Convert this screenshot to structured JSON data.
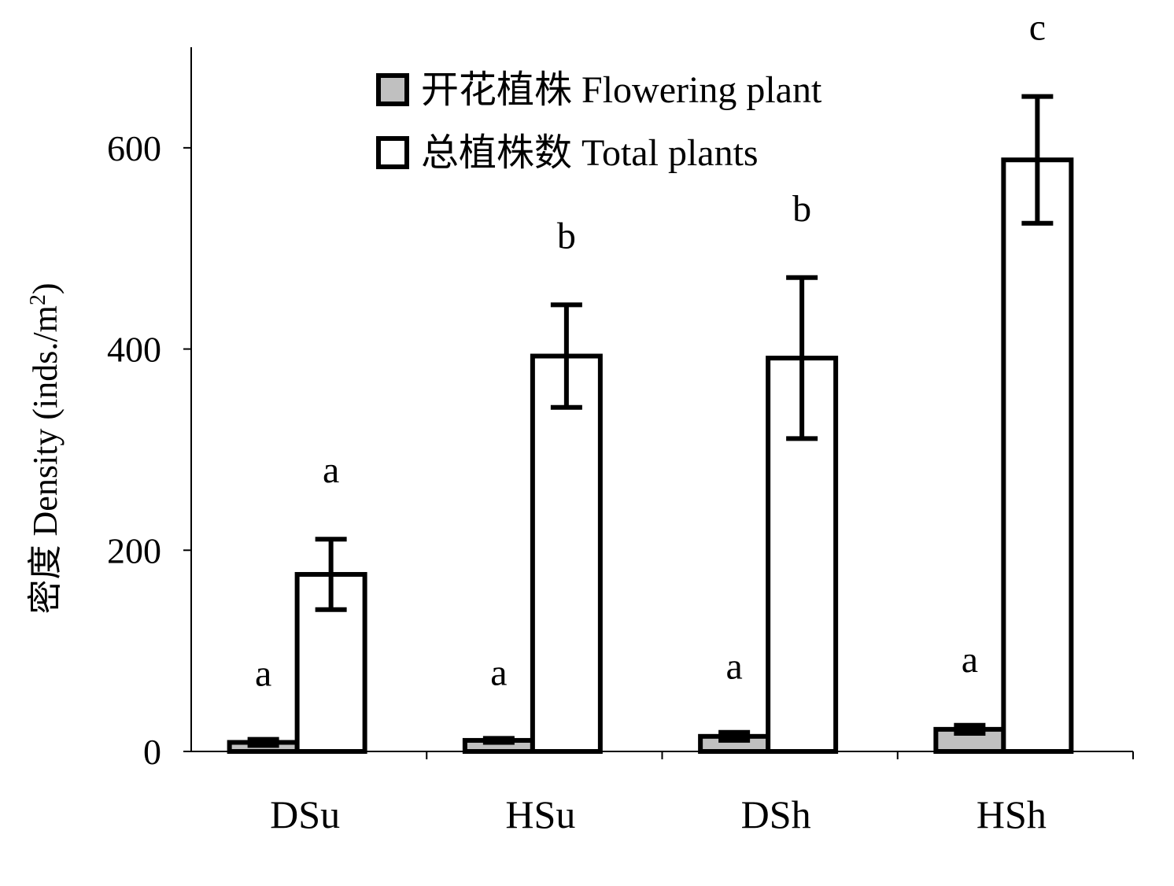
{
  "chart_data": {
    "type": "bar",
    "ylabel": "密度 Density (inds./m",
    "ylabel_sup": "2",
    "ylabel_tail": ")",
    "xlabel": "",
    "ylim": [
      0,
      700
    ],
    "yticks": [
      0,
      200,
      400,
      600
    ],
    "categories": [
      "DSu",
      "HSu",
      "DSh",
      "HSh"
    ],
    "legend_position": "top",
    "grid": false,
    "series": [
      {
        "name": "开花植株 Flowering plant",
        "fill": "#c0c0c0",
        "values": [
          9,
          11,
          15,
          22
        ],
        "errors": [
          3,
          2,
          4,
          4
        ],
        "letters": [
          "a",
          "a",
          "a",
          "a"
        ]
      },
      {
        "name": "总植株数 Total plants",
        "fill": "#ffffff",
        "values": [
          176,
          393,
          391,
          588
        ],
        "errors": [
          35,
          51,
          80,
          63
        ],
        "letters": [
          "a",
          "b",
          "b",
          "c"
        ]
      }
    ]
  }
}
